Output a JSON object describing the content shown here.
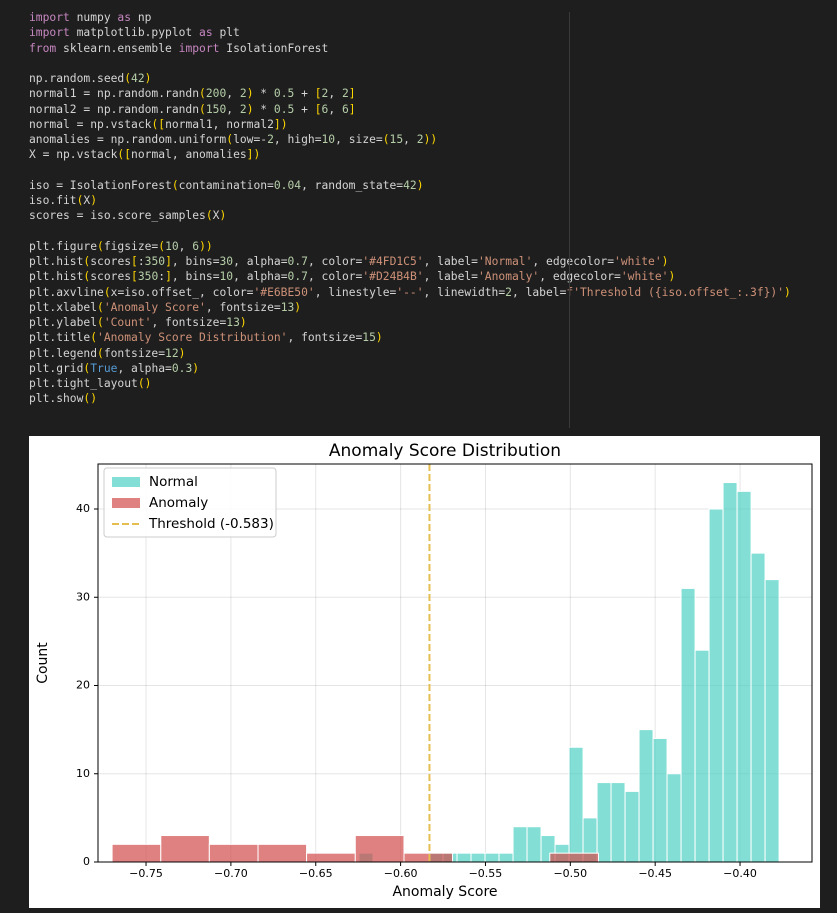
{
  "code": [
    [
      "import numpy as np",
      "import matplotlib.pyplot as plt",
      "from sklearn.ensemble import IsolationForest"
    ],
    [
      "np.random.seed(42)",
      "normal1 = np.random.randn(200, 2) * 0.5 + [2, 2]",
      "normal2 = np.random.randn(150, 2) * 0.5 + [6, 6]",
      "normal = np.vstack([normal1, normal2])",
      "anomalies = np.random.uniform(low=-2, high=10, size=(15, 2))",
      "X = np.vstack([normal, anomalies])"
    ],
    [
      "iso = IsolationForest(contamination=0.04, random_state=42)",
      "iso.fit(X)",
      "scores = iso.score_samples(X)"
    ],
    [
      "plt.figure(figsize=(10, 6))",
      "plt.hist(scores[:350], bins=30, alpha=0.7, color='#4FD1C5', label='Normal', edgecolor='white')",
      "plt.hist(scores[350:], bins=10, alpha=0.7, color='#D24B4B', label='Anomaly', edgecolor='white')",
      "plt.axvline(x=iso.offset_, color='#E6BE50', linestyle='--', linewidth=2, label=f'Threshold ({iso.offset_:.3f})')",
      "plt.xlabel('Anomaly Score', fontsize=13)",
      "plt.ylabel('Count', fontsize=13)",
      "plt.title('Anomaly Score Distribution', fontsize=15)",
      "plt.legend(fontsize=12)",
      "plt.grid(True, alpha=0.3)",
      "plt.tight_layout()",
      "plt.show()"
    ]
  ],
  "chart_data": {
    "type": "histogram",
    "title": "Anomaly Score Distribution",
    "x_label": "Anomaly Score",
    "y_label": "Count",
    "alpha": 0.7,
    "grid": true,
    "legend": "upper left",
    "series": [
      {
        "name": "Normal",
        "color": "#4FD1C5",
        "bins": [
          -0.6245,
          -0.61625,
          -0.608,
          -0.59975,
          -0.5915,
          -0.58325,
          -0.575,
          -0.56675,
          -0.5585,
          -0.55025,
          -0.542,
          -0.53375,
          -0.5255,
          -0.51725,
          -0.509,
          -0.50075,
          -0.4925,
          -0.48425,
          -0.476,
          -0.46775,
          -0.4595,
          -0.45125,
          -0.443,
          -0.43475,
          -0.4265,
          -0.41825,
          -0.41,
          -0.40175,
          -0.3935,
          -0.38525,
          -0.377
        ],
        "values": [
          1,
          0,
          0,
          0,
          0,
          1,
          1,
          1,
          1,
          1,
          1,
          4,
          4,
          3,
          2,
          13,
          5,
          9,
          9,
          8,
          15,
          14,
          10,
          31,
          24,
          40,
          43,
          42,
          35,
          32
        ]
      },
      {
        "name": "Anomaly",
        "color": "#D24B4B",
        "bins": [
          -0.77,
          -0.7413,
          -0.7127,
          -0.684,
          -0.6554,
          -0.6267,
          -0.598,
          -0.5694,
          -0.5407,
          -0.5121,
          -0.4834
        ],
        "values": [
          2,
          3,
          2,
          2,
          1,
          3,
          1,
          0,
          0,
          1
        ]
      }
    ],
    "threshold": {
      "value": -0.583,
      "label": "Threshold (-0.583)",
      "color": "#E6BE50"
    },
    "xlim": [
      -0.7783,
      -0.3576
    ],
    "ylim": [
      0,
      45.1
    ],
    "xticks": [
      {
        "value": -0.75,
        "label": "−0.75"
      },
      {
        "value": -0.7,
        "label": "−0.70"
      },
      {
        "value": -0.65,
        "label": "−0.65"
      },
      {
        "value": -0.6,
        "label": "−0.60"
      },
      {
        "value": -0.55,
        "label": "−0.55"
      },
      {
        "value": -0.5,
        "label": "−0.50"
      },
      {
        "value": -0.45,
        "label": "−0.45"
      },
      {
        "value": -0.4,
        "label": "−0.40"
      }
    ],
    "yticks": [
      0,
      10,
      20,
      30,
      40
    ]
  }
}
